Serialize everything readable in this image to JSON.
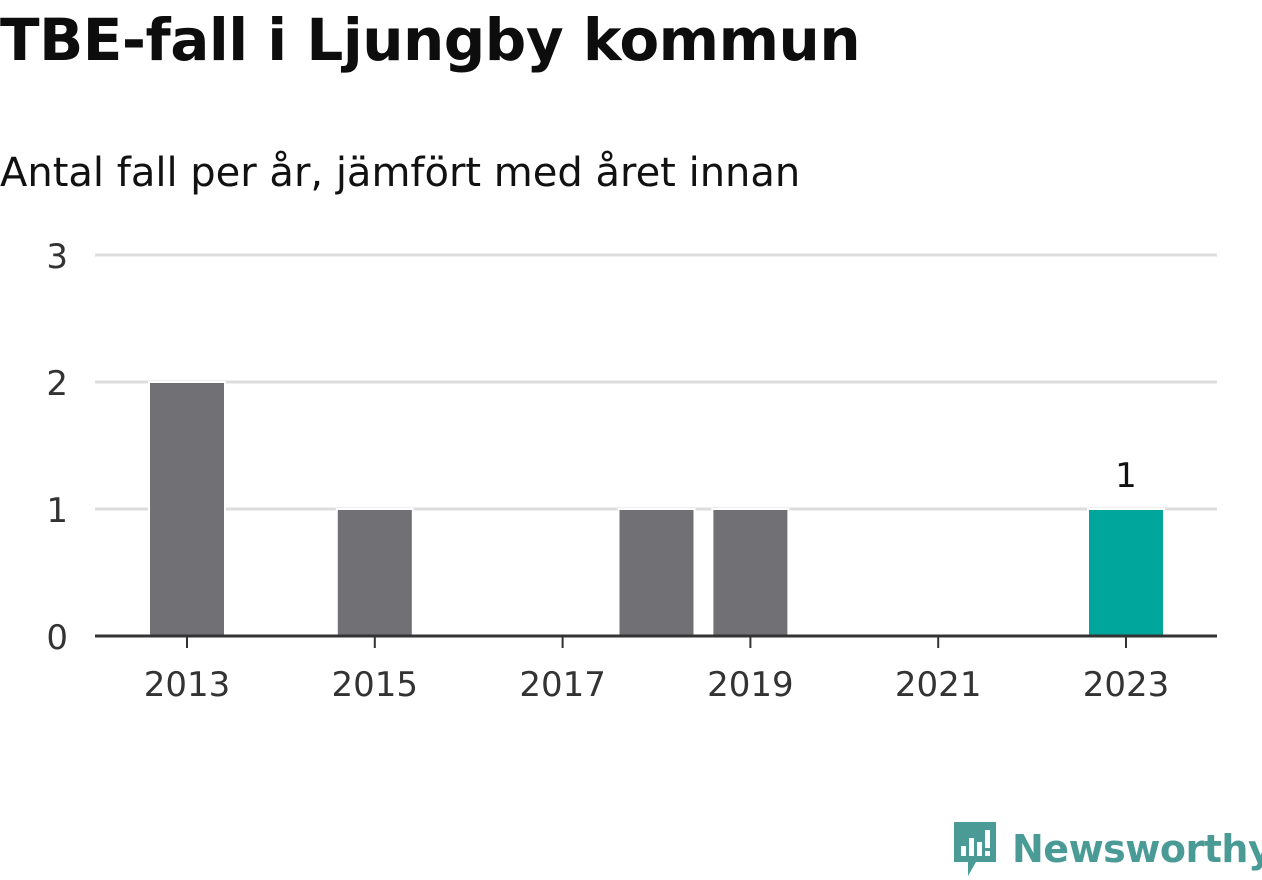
{
  "header": {
    "title": "TBE-fall i Ljungby kommun",
    "subtitle": "Antal fall per år, jämfört med året innan"
  },
  "brand": {
    "name": "Newsworthy",
    "icon": "bar-chart-bubble-icon",
    "color": "#4a9b95"
  },
  "colors": {
    "bar": "#707075",
    "highlight": "#00a59b",
    "grid": "#dddddd",
    "axis": "#333333"
  },
  "chart_data": {
    "type": "bar",
    "categories": [
      "2013",
      "2014",
      "2015",
      "2016",
      "2017",
      "2018",
      "2019",
      "2020",
      "2021",
      "2022",
      "2023"
    ],
    "values": [
      2,
      0,
      1,
      0,
      0,
      1,
      1,
      0,
      0,
      0,
      1
    ],
    "highlight_index": 10,
    "data_labels": [
      {
        "index": 10,
        "text": "1"
      }
    ],
    "x_tick_labels": [
      "2013",
      "2015",
      "2017",
      "2019",
      "2021",
      "2023"
    ],
    "y_ticks": [
      0,
      1,
      2,
      3
    ],
    "ylim": [
      0,
      3
    ],
    "grid": true,
    "legend": "none",
    "xlabel": "",
    "ylabel": ""
  }
}
